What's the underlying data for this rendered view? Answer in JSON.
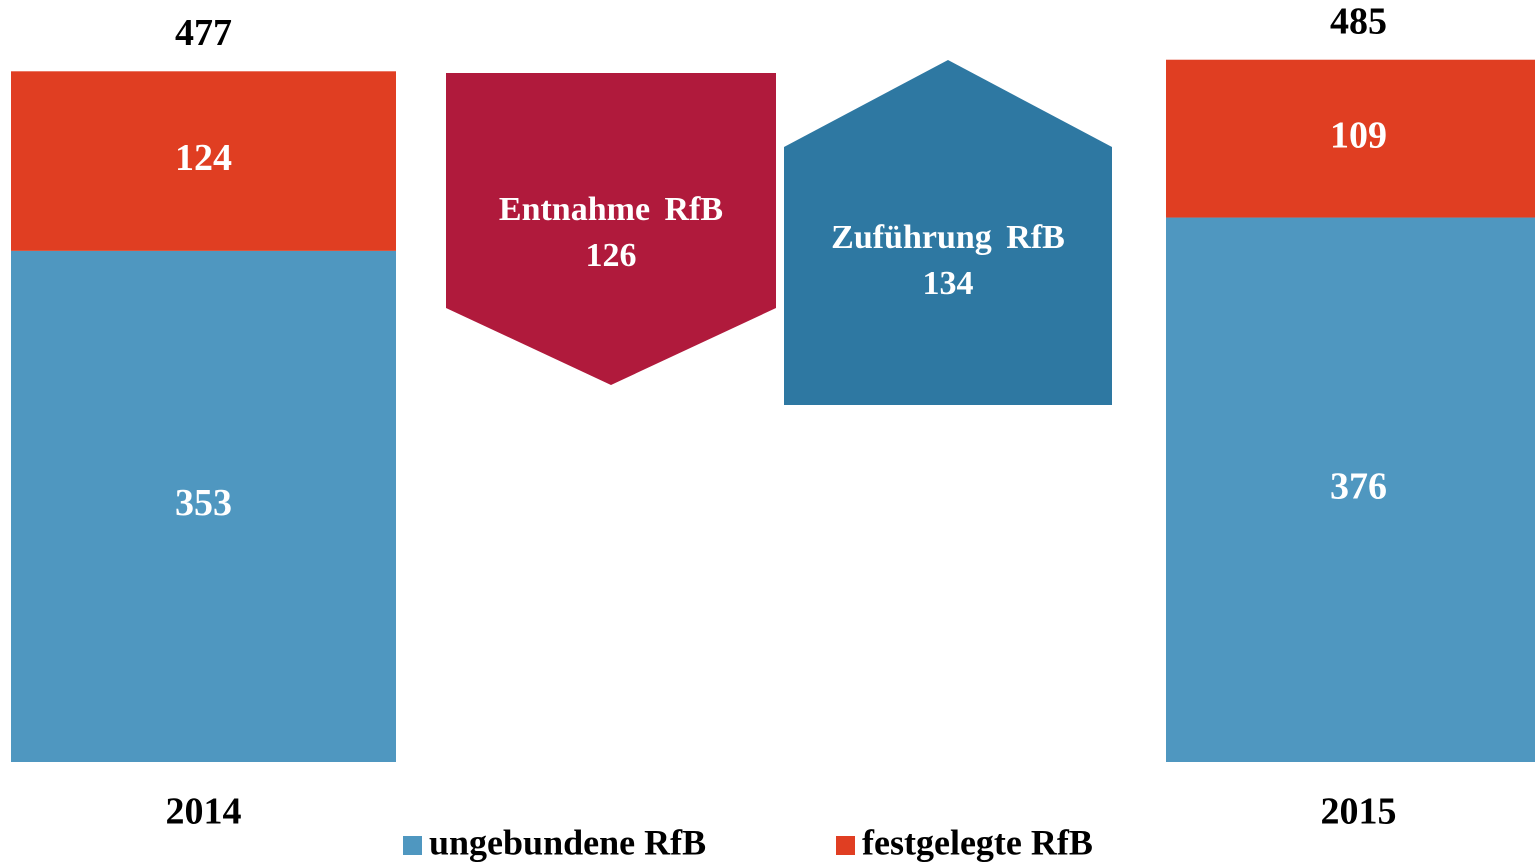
{
  "chart_data": {
    "type": "stacked_bar",
    "categories": [
      "2014",
      "2015"
    ],
    "series": [
      {
        "name": "ungebundene RfB",
        "color": "#4f97c0",
        "values": [
          353,
          376
        ]
      },
      {
        "name": "festgelegte RfB",
        "color": "#e03e22",
        "values": [
          124,
          109
        ]
      }
    ],
    "totals": [
      477,
      485
    ],
    "flows": [
      {
        "label": "Entnahme RfB",
        "value": 126,
        "color": "#b01a3c",
        "direction": "down"
      },
      {
        "label": "Zuführung RfB",
        "value": 134,
        "color": "#2e78a2",
        "direction": "up"
      }
    ],
    "ylim": [
      0,
      500
    ]
  }
}
